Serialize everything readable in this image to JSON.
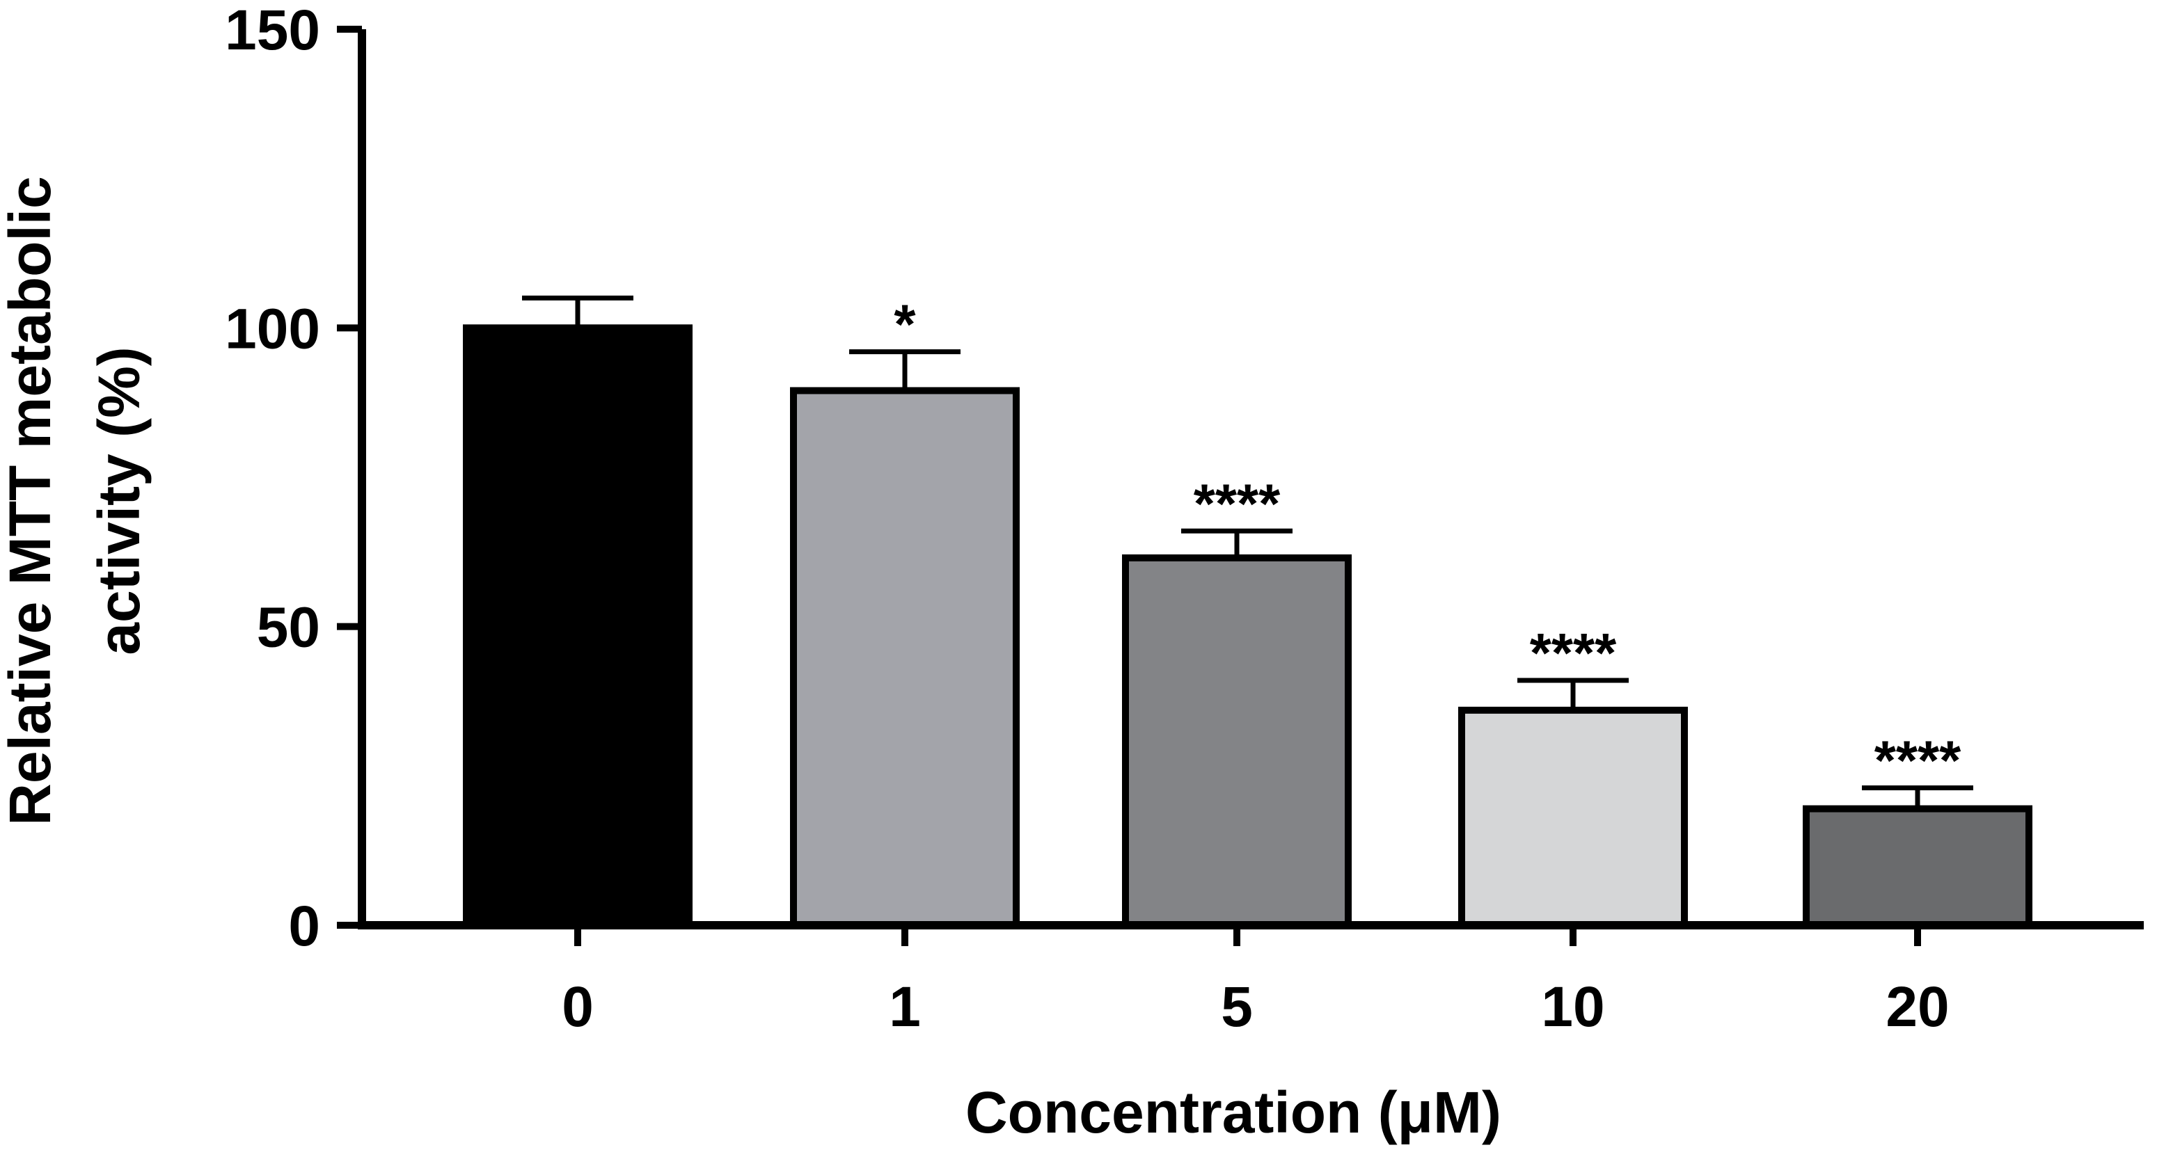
{
  "chart_data": {
    "type": "bar",
    "categories": [
      "0",
      "1",
      "5",
      "10",
      "20"
    ],
    "values": [
      100,
      89.5,
      61.5,
      36,
      19.5
    ],
    "errors": [
      5,
      6.5,
      4.5,
      5,
      3.5
    ],
    "significance": [
      "",
      "*",
      "****",
      "****",
      "****"
    ],
    "bar_colors": [
      "#000000",
      "#a3a4aa",
      "#838487",
      "#d5d6d7",
      "#6a6b6d"
    ],
    "xlabel": "Concentration (μM)",
    "ylabel_lines": [
      "Relative MTT metabolic",
      "activity (%)"
    ],
    "ylim": [
      0,
      150
    ],
    "yticks": [
      0,
      50,
      100,
      150
    ],
    "grid": false,
    "legend": "none"
  }
}
